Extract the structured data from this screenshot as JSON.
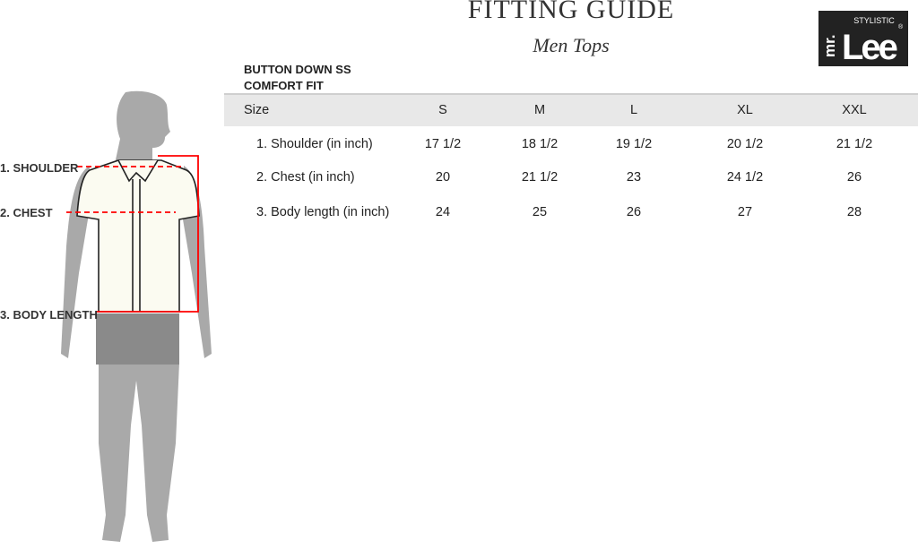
{
  "header": {
    "title": "FITTING GUIDE",
    "subtitle": "Men Tops"
  },
  "logo": {
    "text": "mr.Lee STYLISTIC",
    "bg": "#222222"
  },
  "product": {
    "line1": "BUTTON DOWN SS",
    "line2": "COMFORT FIT"
  },
  "figure": {
    "labels": [
      "1. SHOULDER",
      "2. CHEST",
      "3. BODY LENGTH"
    ],
    "measure_color": "#ff0000"
  },
  "table": {
    "header_label": "Size",
    "sizes": [
      "S",
      "M",
      "L",
      "XL",
      "XXL"
    ],
    "rows": [
      {
        "label": "1. Shoulder (in inch)",
        "values": [
          "17 1/2",
          "18 1/2",
          "19 1/2",
          "20 1/2",
          "21 1/2"
        ]
      },
      {
        "label": "2. Chest (in inch)",
        "values": [
          "20",
          "21 1/2",
          "23",
          "24 1/2",
          "26"
        ]
      },
      {
        "label": "3. Body length (in inch)",
        "values": [
          "24",
          "25",
          "26",
          "27",
          "28"
        ]
      }
    ]
  }
}
